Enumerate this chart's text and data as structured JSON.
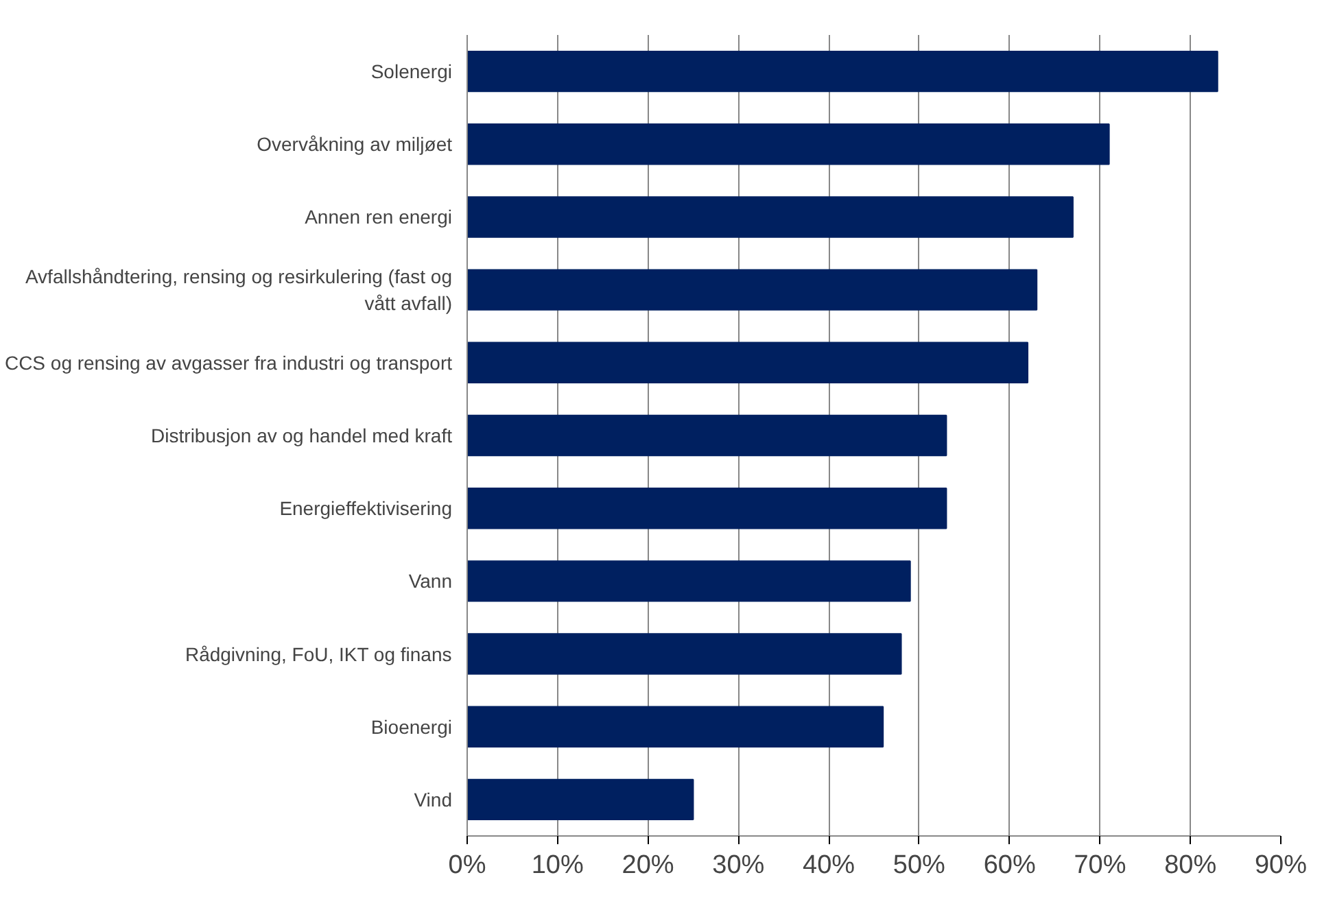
{
  "chart_data": {
    "type": "bar",
    "orientation": "horizontal",
    "categories": [
      "Solenergi",
      "Overvåkning av miljøet",
      "Annen ren energi",
      "Avfallshåndtering, rensing og resirkulering (fast og vått avfall)",
      "CCS og rensing av avgasser fra industri og transport",
      "Distribusjon av og handel med kraft",
      "Energieffektivisering",
      "Vann",
      "Rådgivning, FoU, IKT og finans",
      "Bioenergi",
      "Vind"
    ],
    "values": [
      83,
      71,
      67,
      63,
      62,
      53,
      53,
      49,
      48,
      46,
      25
    ],
    "color": "#002060",
    "xlim": [
      0,
      90
    ],
    "xticks": [
      {
        "value": 0,
        "label": "0%"
      },
      {
        "value": 10,
        "label": "10%"
      },
      {
        "value": 20,
        "label": "20%"
      },
      {
        "value": 30,
        "label": "30%"
      },
      {
        "value": 40,
        "label": "40%"
      },
      {
        "value": 50,
        "label": "50%"
      },
      {
        "value": 60,
        "label": "60%"
      },
      {
        "value": 70,
        "label": "70%"
      },
      {
        "value": 80,
        "label": "80%"
      },
      {
        "value": 90,
        "label": "90%"
      }
    ],
    "grid": "x"
  }
}
